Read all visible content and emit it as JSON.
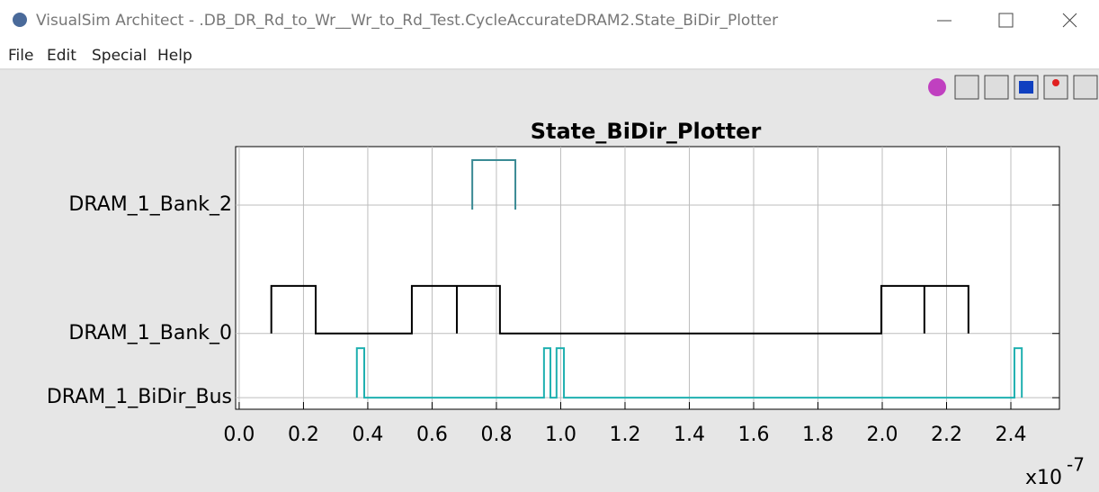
{
  "window": {
    "title": "VisualSim Architect - .DB_DR_Rd_to_Wr__Wr_to_Rd_Test.CycleAccurateDRAM2.State_BiDir_Plotter"
  },
  "menu": [
    "File",
    "Edit",
    "Special",
    "Help"
  ],
  "chart_data": {
    "type": "line",
    "title": "State_BiDir_Plotter",
    "x_scale_label": "x10",
    "x_scale_exponent": "-7",
    "xlim": [
      -0.011,
      2.551
    ],
    "xticks": [
      {
        "value": 0,
        "label": "0.0"
      },
      0.2,
      0.4,
      0.6,
      0.8,
      {
        "value": 1,
        "label": "1.0"
      },
      1.2,
      1.4,
      1.6,
      1.8,
      {
        "value": 2,
        "label": "2.0"
      },
      2.2,
      2.4
    ],
    "ylim": [
      -0.18,
      3.91
    ],
    "yticks": [
      {
        "value": 0,
        "label": "DRAM_1_BiDir_Bus"
      },
      {
        "value": 1,
        "label": "DRAM_1_Bank_0"
      },
      {
        "value": 3,
        "label": "DRAM_1_Bank_2"
      }
    ],
    "grid": true,
    "series": [
      {
        "color": "#000000",
        "x": [
          0.1,
          0.1,
          0.238,
          0.238,
          0.537,
          0.537,
          0.677,
          0.677,
          0.677,
          0.811,
          0.811,
          1.997,
          1.997,
          2.131,
          2.131,
          2.131,
          2.268,
          2.268
        ],
        "values": [
          1,
          1.74,
          1.74,
          1,
          1,
          1.74,
          1.74,
          1,
          1.74,
          1.74,
          1,
          1,
          1.74,
          1.74,
          1,
          1.74,
          1.74,
          1
        ]
      },
      {
        "color": "#3a8a94",
        "x": [
          0.725,
          0.725,
          0.859,
          0.859
        ],
        "values": [
          2.93,
          3.7,
          3.7,
          2.93
        ]
      },
      {
        "color": "#1fb0b0",
        "x": [
          0.366,
          0.366,
          0.389,
          0.389,
          0.948,
          0.948,
          0.968,
          0.968,
          0.987,
          0.987,
          1.01,
          1.01,
          2.411,
          2.411,
          2.434,
          2.434
        ],
        "values": [
          0,
          0.77,
          0.77,
          0,
          0,
          0.77,
          0.77,
          0,
          0,
          0.77,
          0.77,
          0,
          0,
          0.77,
          0.77,
          0
        ]
      }
    ]
  }
}
